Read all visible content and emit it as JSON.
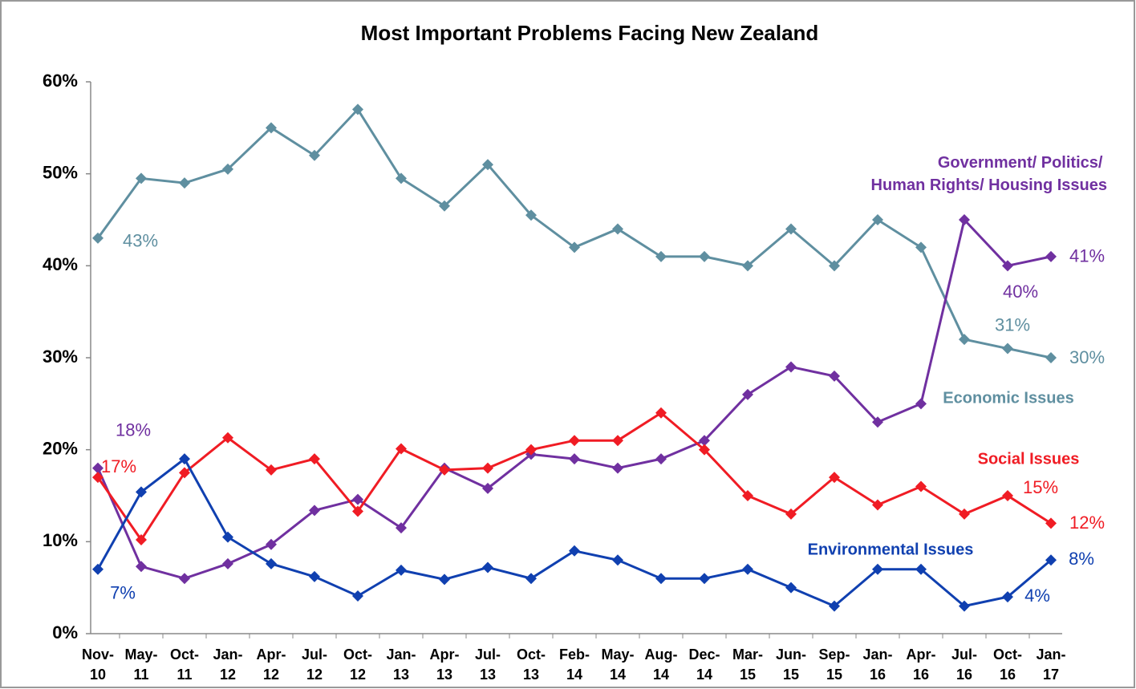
{
  "chart_data": {
    "type": "line",
    "title": "Most Important Problems Facing New Zealand",
    "categories": [
      "Nov-10",
      "May-11",
      "Oct-11",
      "Jan-12",
      "Apr-12",
      "Jul-12",
      "Oct-12",
      "Jan-13",
      "Apr-13",
      "Jul-13",
      "Oct-13",
      "Feb-14",
      "May-14",
      "Aug-14",
      "Dec-14",
      "Mar-15",
      "Jun-15",
      "Sep-15",
      "Jan-16",
      "Apr-16",
      "Jul-16",
      "Oct-16",
      "Jan-17"
    ],
    "ylim": [
      0,
      60
    ],
    "yticks": [
      {
        "value": 0,
        "label": "0%"
      },
      {
        "value": 10,
        "label": "10%"
      },
      {
        "value": 20,
        "label": "20%"
      },
      {
        "value": 30,
        "label": "30%"
      },
      {
        "value": 40,
        "label": "40%"
      },
      {
        "value": 50,
        "label": "50%"
      },
      {
        "value": 60,
        "label": "60%"
      }
    ],
    "grid": false,
    "series": [
      {
        "name": "Economic Issues",
        "color": "#5f8fa0",
        "values": [
          43,
          49.5,
          49,
          50.5,
          55,
          52,
          57,
          49.5,
          46.5,
          51,
          45.5,
          42,
          44,
          41,
          41,
          40,
          44,
          40,
          45,
          42,
          32,
          31,
          30
        ],
        "value_labels": [
          "43%",
          null,
          null,
          null,
          null,
          null,
          null,
          null,
          null,
          null,
          null,
          null,
          null,
          null,
          null,
          null,
          null,
          null,
          null,
          null,
          null,
          "31%",
          "30%"
        ]
      },
      {
        "name": "Government/ Politics/ Human Rights/ Housing Issues",
        "color": "#7030a0",
        "values": [
          18,
          7.3,
          6,
          7.6,
          9.7,
          13.4,
          14.6,
          11.5,
          18,
          15.8,
          19.5,
          19,
          18,
          19,
          21,
          26,
          29,
          28,
          23,
          25,
          45,
          40,
          41
        ],
        "value_labels": [
          "18%",
          null,
          null,
          null,
          null,
          null,
          null,
          null,
          null,
          null,
          null,
          null,
          null,
          null,
          null,
          null,
          null,
          null,
          null,
          null,
          null,
          "40%",
          "41%"
        ]
      },
      {
        "name": "Social Issues",
        "color": "#f01c24",
        "values": [
          17,
          10.2,
          17.5,
          21.3,
          17.8,
          19,
          13.3,
          20.1,
          17.8,
          18,
          20,
          21,
          21,
          24,
          20,
          15,
          13,
          17,
          14,
          16,
          13,
          15,
          12
        ],
        "value_labels": [
          "17%",
          null,
          null,
          null,
          null,
          null,
          null,
          null,
          null,
          null,
          null,
          null,
          null,
          null,
          null,
          null,
          null,
          null,
          null,
          null,
          null,
          "15%",
          "12%"
        ]
      },
      {
        "name": "Environmental Issues",
        "color": "#1040b0",
        "values": [
          7,
          15.4,
          19,
          10.5,
          7.6,
          6.2,
          4.1,
          6.9,
          5.9,
          7.2,
          6,
          9,
          8,
          6,
          6,
          7,
          5,
          3,
          7,
          7,
          3,
          4,
          8
        ],
        "value_labels": [
          "7%",
          null,
          null,
          null,
          null,
          null,
          null,
          null,
          null,
          null,
          null,
          null,
          null,
          null,
          null,
          null,
          null,
          null,
          null,
          null,
          null,
          "4%",
          "8%"
        ]
      }
    ]
  }
}
